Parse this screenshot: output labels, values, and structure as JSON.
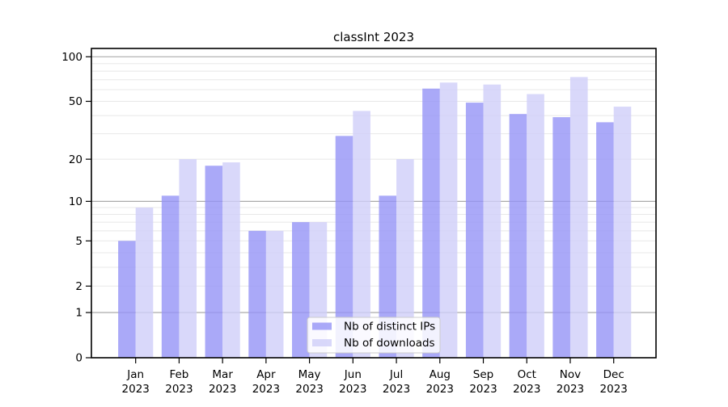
{
  "chart_data": {
    "type": "bar",
    "title": "classInt 2023",
    "categories": [
      "Jan 2023",
      "Feb 2023",
      "Mar 2023",
      "Apr 2023",
      "May 2023",
      "Jun 2023",
      "Jul 2023",
      "Aug 2023",
      "Sep 2023",
      "Oct 2023",
      "Nov 2023",
      "Dec 2023"
    ],
    "months": [
      "Jan",
      "Feb",
      "Mar",
      "Apr",
      "May",
      "Jun",
      "Jul",
      "Aug",
      "Sep",
      "Oct",
      "Nov",
      "Dec"
    ],
    "year_label": "2023",
    "series": [
      {
        "key": "ips",
        "name": "Nb of distinct IPs",
        "color": "#9593f6",
        "values": [
          5,
          11,
          18,
          6,
          7,
          29,
          11,
          61,
          49,
          41,
          39,
          36
        ]
      },
      {
        "key": "downloads",
        "name": "Nb of downloads",
        "color": "#cfcef9",
        "values": [
          9,
          20,
          19,
          6,
          7,
          43,
          20,
          67,
          65,
          56,
          73,
          46
        ]
      }
    ],
    "bar_opacity": 0.8,
    "y_scale": "log1p",
    "ylim": [
      0,
      100
    ],
    "y_ticks": [
      0,
      1,
      2,
      5,
      10,
      20,
      50,
      100
    ],
    "grid": {
      "major_values": [
        1,
        10,
        100
      ],
      "minor_values": [
        2,
        3,
        4,
        5,
        6,
        7,
        8,
        9,
        20,
        30,
        40,
        50,
        60,
        70,
        80,
        90
      ],
      "major_color": "#ababab",
      "minor_color": "#e8e8e8"
    },
    "legend": {
      "position": "lower center",
      "entries": [
        "Nb of distinct IPs",
        "Nb of downloads"
      ],
      "background": "#ffffff",
      "border_color": "#cccccc"
    },
    "colors": {
      "background": "#ffffff",
      "axis": "#000000",
      "text": "#000000"
    }
  }
}
